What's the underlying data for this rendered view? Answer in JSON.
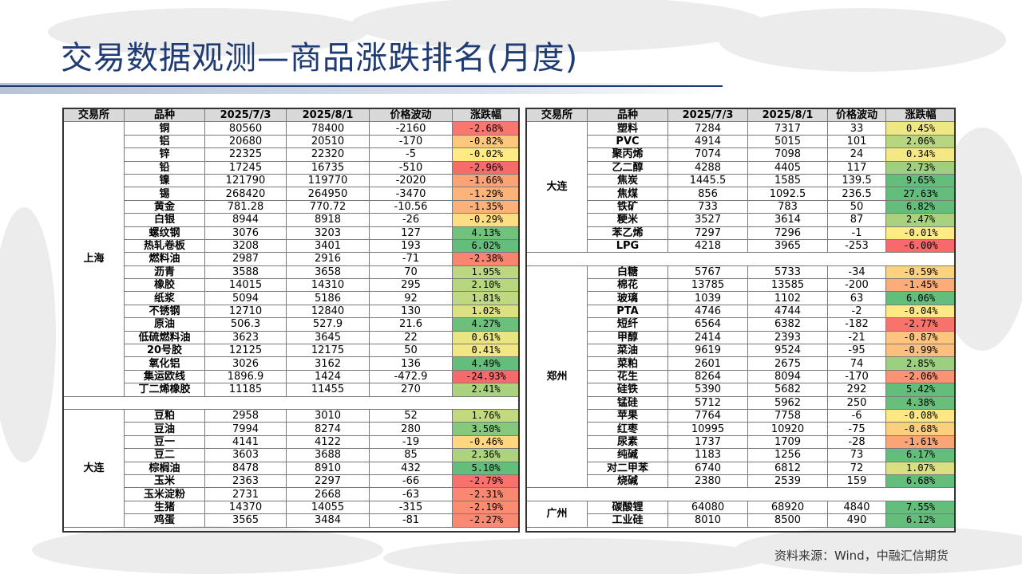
{
  "slide": {
    "title": "交易数据观测—商品涨跌排名(月度)",
    "source": "资料来源：Wind，中融汇信期货"
  },
  "columns": [
    "交易所",
    "品种",
    "2025/7/3",
    "2025/8/1",
    "价格波动",
    "涨跌幅"
  ],
  "colors": {
    "header_bg": "#d9d9d9",
    "title": "#1f3b73",
    "strong_up": "#63be7b",
    "neutral": "#ffeb84",
    "strong_down": "#f8696b"
  },
  "left_groups": [
    {
      "exchange": "上海",
      "rows": [
        {
          "name": "铜",
          "p1": "80560",
          "p2": "78400",
          "diff": "-2160",
          "pct": "-2.68%",
          "v": -2.68
        },
        {
          "name": "铝",
          "p1": "20680",
          "p2": "20510",
          "diff": "-170",
          "pct": "-0.82%",
          "v": -0.82
        },
        {
          "name": "锌",
          "p1": "22325",
          "p2": "22320",
          "diff": "-5",
          "pct": "-0.02%",
          "v": -0.02
        },
        {
          "name": "铅",
          "p1": "17245",
          "p2": "16735",
          "diff": "-510",
          "pct": "-2.96%",
          "v": -2.96
        },
        {
          "name": "镍",
          "p1": "121790",
          "p2": "119770",
          "diff": "-2020",
          "pct": "-1.66%",
          "v": -1.66
        },
        {
          "name": "锡",
          "p1": "268420",
          "p2": "264950",
          "diff": "-3470",
          "pct": "-1.29%",
          "v": -1.29
        },
        {
          "name": "黄金",
          "p1": "781.28",
          "p2": "770.72",
          "diff": "-10.56",
          "pct": "-1.35%",
          "v": -1.35
        },
        {
          "name": "白银",
          "p1": "8944",
          "p2": "8918",
          "diff": "-26",
          "pct": "-0.29%",
          "v": -0.29
        },
        {
          "name": "螺纹钢",
          "p1": "3076",
          "p2": "3203",
          "diff": "127",
          "pct": "4.13%",
          "v": 4.13
        },
        {
          "name": "热轧卷板",
          "p1": "3208",
          "p2": "3401",
          "diff": "193",
          "pct": "6.02%",
          "v": 6.02
        },
        {
          "name": "燃料油",
          "p1": "2987",
          "p2": "2916",
          "diff": "-71",
          "pct": "-2.38%",
          "v": -2.38
        },
        {
          "name": "沥青",
          "p1": "3588",
          "p2": "3658",
          "diff": "70",
          "pct": "1.95%",
          "v": 1.95
        },
        {
          "name": "橡胶",
          "p1": "14015",
          "p2": "14310",
          "diff": "295",
          "pct": "2.10%",
          "v": 2.1
        },
        {
          "name": "纸浆",
          "p1": "5094",
          "p2": "5186",
          "diff": "92",
          "pct": "1.81%",
          "v": 1.81
        },
        {
          "name": "不锈钢",
          "p1": "12710",
          "p2": "12840",
          "diff": "130",
          "pct": "1.02%",
          "v": 1.02
        },
        {
          "name": "原油",
          "p1": "506.3",
          "p2": "527.9",
          "diff": "21.6",
          "pct": "4.27%",
          "v": 4.27
        },
        {
          "name": "低硫燃料油",
          "p1": "3623",
          "p2": "3645",
          "diff": "22",
          "pct": "0.61%",
          "v": 0.61
        },
        {
          "name": "20号胶",
          "p1": "12125",
          "p2": "12175",
          "diff": "50",
          "pct": "0.41%",
          "v": 0.41
        },
        {
          "name": "氧化铝",
          "p1": "3026",
          "p2": "3162",
          "diff": "136",
          "pct": "4.49%",
          "v": 4.49
        },
        {
          "name": "集运欧线",
          "p1": "1896.9",
          "p2": "1424",
          "diff": "-472.9",
          "pct": "-24.93%",
          "v": -24.93
        },
        {
          "name": "丁二烯橡胶",
          "p1": "11185",
          "p2": "11455",
          "diff": "270",
          "pct": "2.41%",
          "v": 2.41
        }
      ]
    },
    {
      "exchange": "大连",
      "rows": [
        {
          "name": "豆粕",
          "p1": "2958",
          "p2": "3010",
          "diff": "52",
          "pct": "1.76%",
          "v": 1.76
        },
        {
          "name": "豆油",
          "p1": "7994",
          "p2": "8274",
          "diff": "280",
          "pct": "3.50%",
          "v": 3.5
        },
        {
          "name": "豆一",
          "p1": "4141",
          "p2": "4122",
          "diff": "-19",
          "pct": "-0.46%",
          "v": -0.46
        },
        {
          "name": "豆二",
          "p1": "3603",
          "p2": "3688",
          "diff": "85",
          "pct": "2.36%",
          "v": 2.36
        },
        {
          "name": "棕榈油",
          "p1": "8478",
          "p2": "8910",
          "diff": "432",
          "pct": "5.10%",
          "v": 5.1
        },
        {
          "name": "玉米",
          "p1": "2363",
          "p2": "2297",
          "diff": "-66",
          "pct": "-2.79%",
          "v": -2.79
        },
        {
          "name": "玉米淀粉",
          "p1": "2731",
          "p2": "2668",
          "diff": "-63",
          "pct": "-2.31%",
          "v": -2.31
        },
        {
          "name": "生猪",
          "p1": "14370",
          "p2": "14055",
          "diff": "-315",
          "pct": "-2.19%",
          "v": -2.19
        },
        {
          "name": "鸡蛋",
          "p1": "3565",
          "p2": "3484",
          "diff": "-81",
          "pct": "-2.27%",
          "v": -2.27
        }
      ]
    }
  ],
  "right_groups": [
    {
      "exchange": "大连",
      "rows": [
        {
          "name": "塑料",
          "p1": "7284",
          "p2": "7317",
          "diff": "33",
          "pct": "0.45%",
          "v": 0.45
        },
        {
          "name": "PVC",
          "p1": "4914",
          "p2": "5015",
          "diff": "101",
          "pct": "2.06%",
          "v": 2.06
        },
        {
          "name": "聚丙烯",
          "p1": "7074",
          "p2": "7098",
          "diff": "24",
          "pct": "0.34%",
          "v": 0.34
        },
        {
          "name": "乙二醇",
          "p1": "4288",
          "p2": "4405",
          "diff": "117",
          "pct": "2.73%",
          "v": 2.73
        },
        {
          "name": "焦炭",
          "p1": "1445.5",
          "p2": "1585",
          "diff": "139.5",
          "pct": "9.65%",
          "v": 9.65
        },
        {
          "name": "焦煤",
          "p1": "856",
          "p2": "1092.5",
          "diff": "236.5",
          "pct": "27.63%",
          "v": 27.63
        },
        {
          "name": "铁矿",
          "p1": "733",
          "p2": "783",
          "diff": "50",
          "pct": "6.82%",
          "v": 6.82
        },
        {
          "name": "粳米",
          "p1": "3527",
          "p2": "3614",
          "diff": "87",
          "pct": "2.47%",
          "v": 2.47
        },
        {
          "name": "苯乙烯",
          "p1": "7297",
          "p2": "7296",
          "diff": "-1",
          "pct": "-0.01%",
          "v": -0.01
        },
        {
          "name": "LPG",
          "p1": "4218",
          "p2": "3965",
          "diff": "-253",
          "pct": "-6.00%",
          "v": -6.0
        }
      ]
    },
    {
      "exchange": "郑州",
      "rows": [
        {
          "name": "白糖",
          "p1": "5767",
          "p2": "5733",
          "diff": "-34",
          "pct": "-0.59%",
          "v": -0.59
        },
        {
          "name": "棉花",
          "p1": "13785",
          "p2": "13585",
          "diff": "-200",
          "pct": "-1.45%",
          "v": -1.45
        },
        {
          "name": "玻璃",
          "p1": "1039",
          "p2": "1102",
          "diff": "63",
          "pct": "6.06%",
          "v": 6.06
        },
        {
          "name": "PTA",
          "p1": "4746",
          "p2": "4744",
          "diff": "-2",
          "pct": "-0.04%",
          "v": -0.04
        },
        {
          "name": "短纤",
          "p1": "6564",
          "p2": "6382",
          "diff": "-182",
          "pct": "-2.77%",
          "v": -2.77
        },
        {
          "name": "甲醇",
          "p1": "2414",
          "p2": "2393",
          "diff": "-21",
          "pct": "-0.87%",
          "v": -0.87
        },
        {
          "name": "菜油",
          "p1": "9619",
          "p2": "9524",
          "diff": "-95",
          "pct": "-0.99%",
          "v": -0.99
        },
        {
          "name": "菜粕",
          "p1": "2601",
          "p2": "2675",
          "diff": "74",
          "pct": "2.85%",
          "v": 2.85
        },
        {
          "name": "花生",
          "p1": "8264",
          "p2": "8094",
          "diff": "-170",
          "pct": "-2.06%",
          "v": -2.06
        },
        {
          "name": "硅铁",
          "p1": "5390",
          "p2": "5682",
          "diff": "292",
          "pct": "5.42%",
          "v": 5.42
        },
        {
          "name": "锰硅",
          "p1": "5712",
          "p2": "5962",
          "diff": "250",
          "pct": "4.38%",
          "v": 4.38
        },
        {
          "name": "苹果",
          "p1": "7764",
          "p2": "7758",
          "diff": "-6",
          "pct": "-0.08%",
          "v": -0.08
        },
        {
          "name": "红枣",
          "p1": "10995",
          "p2": "10920",
          "diff": "-75",
          "pct": "-0.68%",
          "v": -0.68
        },
        {
          "name": "尿素",
          "p1": "1737",
          "p2": "1709",
          "diff": "-28",
          "pct": "-1.61%",
          "v": -1.61
        },
        {
          "name": "纯碱",
          "p1": "1183",
          "p2": "1256",
          "diff": "73",
          "pct": "6.17%",
          "v": 6.17
        },
        {
          "name": "对二甲苯",
          "p1": "6740",
          "p2": "6812",
          "diff": "72",
          "pct": "1.07%",
          "v": 1.07
        },
        {
          "name": "烧碱",
          "p1": "2380",
          "p2": "2539",
          "diff": "159",
          "pct": "6.68%",
          "v": 6.68
        }
      ]
    },
    {
      "exchange": "广州",
      "rows": [
        {
          "name": "碳酸锂",
          "p1": "64080",
          "p2": "68920",
          "diff": "4840",
          "pct": "7.55%",
          "v": 7.55
        },
        {
          "name": "工业硅",
          "p1": "8010",
          "p2": "8500",
          "diff": "490",
          "pct": "6.12%",
          "v": 6.12
        }
      ]
    }
  ]
}
